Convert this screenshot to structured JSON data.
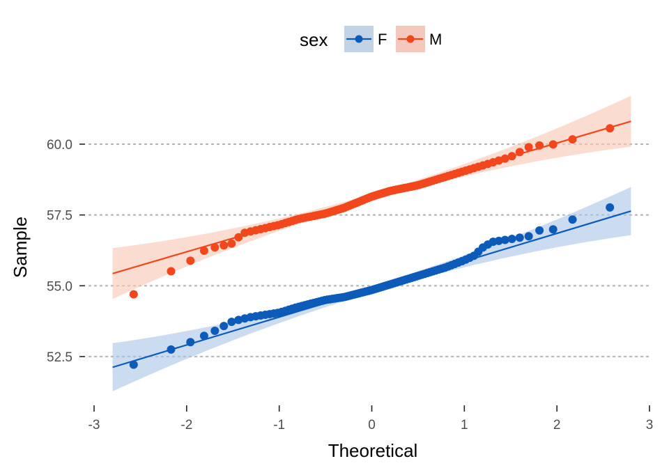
{
  "chart_data": {
    "type": "scatter",
    "subtype": "qq-plot",
    "xlabel": "Theoretical",
    "ylabel": "Sample",
    "xlim": [
      -3,
      3
    ],
    "ylim": [
      51.1,
      61.8
    ],
    "x_ticks": [
      -3,
      -2,
      -1,
      0,
      1,
      2,
      3
    ],
    "x_tick_labels": [
      "-3",
      "-2",
      "-1",
      "0",
      "1",
      "2",
      "3"
    ],
    "y_ticks": [
      52.5,
      55.0,
      57.5,
      60.0
    ],
    "y_tick_labels": [
      "52.5",
      "55.0",
      "57.5",
      "60.0"
    ],
    "grid": "horizontal dotted",
    "legend": {
      "title": "sex",
      "placement": "top-center",
      "entries": [
        "F",
        "M"
      ]
    },
    "series": [
      {
        "name": "F",
        "color": "#0c5bb8",
        "band_color": "#a8c5e6",
        "n": 100,
        "quantile_anchors": {
          "theoretical": [
            -2.8,
            -2.45,
            -2.25,
            -2.0,
            -1.7,
            -1.5,
            -1.3,
            -1.0,
            -0.8,
            -0.5,
            -0.3,
            0.0,
            0.2,
            0.5,
            0.8,
            1.0,
            1.1,
            1.2,
            1.3,
            1.5,
            1.7,
            1.8,
            2.0,
            2.2,
            2.4,
            2.8
          ],
          "sample": [
            52.15,
            52.25,
            52.65,
            52.95,
            53.4,
            53.75,
            53.9,
            54.05,
            54.25,
            54.5,
            54.6,
            54.85,
            55.05,
            55.35,
            55.65,
            55.9,
            56.05,
            56.35,
            56.55,
            56.65,
            56.75,
            56.95,
            57.0,
            57.4,
            57.55,
            58.05
          ]
        },
        "line": {
          "slope": 0.985,
          "intercept": 54.88
        },
        "band_halfwidth": {
          "at_edges": 0.85,
          "at_center": 0.12
        }
      },
      {
        "name": "M",
        "color": "#f2461c",
        "band_color": "#f9c4b2",
        "n": 100,
        "quantile_anchors": {
          "theoretical": [
            -2.8,
            -2.45,
            -2.25,
            -2.1,
            -2.0,
            -1.9,
            -1.7,
            -1.5,
            -1.4,
            -1.0,
            -0.8,
            -0.5,
            -0.3,
            0.0,
            0.2,
            0.5,
            0.8,
            1.0,
            1.2,
            1.5,
            1.7,
            1.8,
            2.0,
            2.2,
            2.4,
            2.8
          ],
          "sample": [
            54.6,
            54.75,
            55.35,
            55.65,
            55.7,
            56.15,
            56.35,
            56.5,
            56.85,
            57.15,
            57.35,
            57.55,
            57.75,
            58.15,
            58.35,
            58.55,
            58.85,
            59.05,
            59.25,
            59.55,
            59.9,
            59.95,
            60.0,
            60.2,
            60.3,
            60.9
          ]
        },
        "line": {
          "slope": 0.96,
          "intercept": 58.12
        },
        "band_halfwidth": {
          "at_edges": 0.9,
          "at_center": 0.12
        }
      }
    ]
  }
}
